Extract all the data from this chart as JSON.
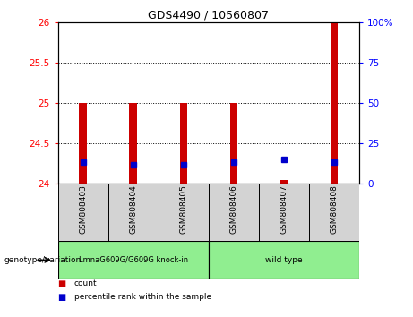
{
  "title": "GDS4490 / 10560807",
  "samples": [
    "GSM808403",
    "GSM808404",
    "GSM808405",
    "GSM808406",
    "GSM808407",
    "GSM808408"
  ],
  "count_values": [
    25.0,
    25.0,
    25.0,
    25.0,
    24.05,
    26.0
  ],
  "percentile_values": [
    13.5,
    12.0,
    12.0,
    13.5,
    15.0,
    13.5
  ],
  "bar_bottom": 24.0,
  "ylim_left": [
    24.0,
    26.0
  ],
  "ylim_right": [
    0,
    100
  ],
  "yticks_left": [
    24.0,
    24.5,
    25.0,
    25.5,
    26.0
  ],
  "yticks_left_labels": [
    "24",
    "24.5",
    "25",
    "25.5",
    "26"
  ],
  "yticks_right": [
    0,
    25,
    50,
    75,
    100
  ],
  "yticks_right_labels": [
    "0",
    "25",
    "50",
    "75",
    "100%"
  ],
  "bar_color": "#CC0000",
  "percentile_color": "#0000CC",
  "bar_width": 0.15,
  "bg_color": "#D3D3D3",
  "group1_label": "LmnaG609G/G609G knock-in",
  "group2_label": "wild type",
  "group1_indices": [
    0,
    1,
    2
  ],
  "group2_indices": [
    3,
    4,
    5
  ],
  "group_color": "#90EE90",
  "legend_count_label": "count",
  "legend_pct_label": "percentile rank within the sample",
  "genotype_label": "genotype/variation"
}
